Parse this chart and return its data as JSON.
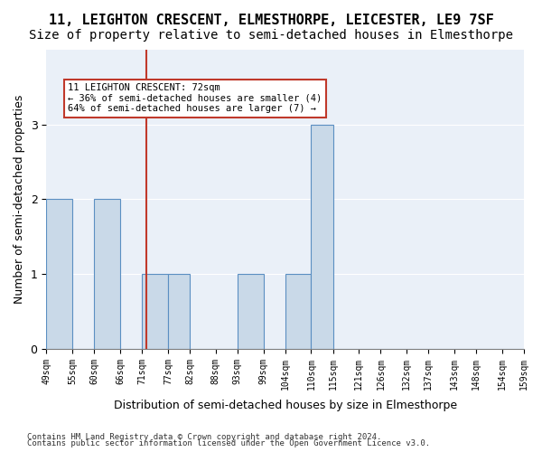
{
  "title": "11, LEIGHTON CRESCENT, ELMESTHORPE, LEICESTER, LE9 7SF",
  "subtitle": "Size of property relative to semi-detached houses in Elmesthorpe",
  "xlabel": "Distribution of semi-detached houses by size in Elmesthorpe",
  "ylabel": "Number of semi-detached properties",
  "footnote1": "Contains HM Land Registry data © Crown copyright and database right 2024.",
  "footnote2": "Contains public sector information licensed under the Open Government Licence v3.0.",
  "bin_labels": [
    "49sqm",
    "55sqm",
    "60sqm",
    "66sqm",
    "71sqm",
    "77sqm",
    "82sqm",
    "88sqm",
    "93sqm",
    "99sqm",
    "104sqm",
    "110sqm",
    "115sqm",
    "121sqm",
    "126sqm",
    "132sqm",
    "137sqm",
    "143sqm",
    "148sqm",
    "154sqm",
    "159sqm"
  ],
  "bin_edges": [
    49,
    55,
    60,
    66,
    71,
    77,
    82,
    88,
    93,
    99,
    104,
    110,
    115,
    121,
    126,
    132,
    137,
    143,
    148,
    154,
    159
  ],
  "counts": [
    2,
    0,
    2,
    0,
    1,
    1,
    0,
    0,
    1,
    0,
    1,
    3,
    0,
    0,
    0,
    0,
    0,
    0,
    0,
    0
  ],
  "bar_color": "#c9d9e8",
  "bar_edge_color": "#5b8fc2",
  "subject_bin_index": 4,
  "subject_size": 72,
  "subject_label": "11 LEIGHTON CRESCENT: 72sqm",
  "pct_smaller": 36,
  "pct_larger": 64,
  "n_smaller": 4,
  "n_larger": 7,
  "vline_color": "#c0392b",
  "annotation_box_color": "#c0392b",
  "ylim": [
    0,
    4
  ],
  "yticks": [
    0,
    1,
    2,
    3
  ],
  "bg_color": "#eaf0f8",
  "title_fontsize": 11,
  "subtitle_fontsize": 10
}
